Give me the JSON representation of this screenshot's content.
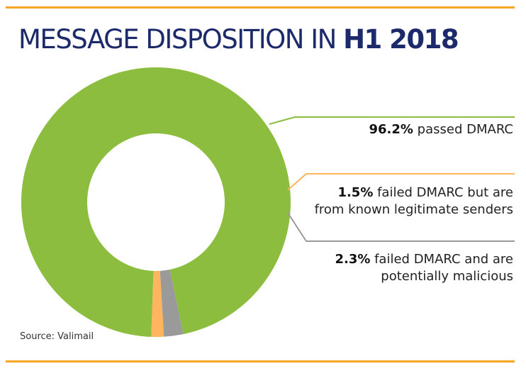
{
  "header": {
    "title_light": "MESSAGE DISPOSITION IN ",
    "title_bold": "H1 2018"
  },
  "chart_data": {
    "type": "pie",
    "title": "MESSAGE DISPOSITION IN H1 2018",
    "unit": "%",
    "slices": [
      {
        "value": 96.2,
        "value_label": "96.2%",
        "text_line1": " passed DMARC",
        "text_line2": "",
        "color": "#8cbd3f"
      },
      {
        "value": 1.5,
        "value_label": "1.5%",
        "text_line1": " failed DMARC but are",
        "text_line2": "from known legitimate senders",
        "color": "#ffb45e"
      },
      {
        "value": 2.3,
        "value_label": "2.3%",
        "text_line1": " failed DMARC and are",
        "text_line2": "potentially malicious",
        "color": "#9a9a9a"
      }
    ]
  },
  "source": "Source: Valimail"
}
